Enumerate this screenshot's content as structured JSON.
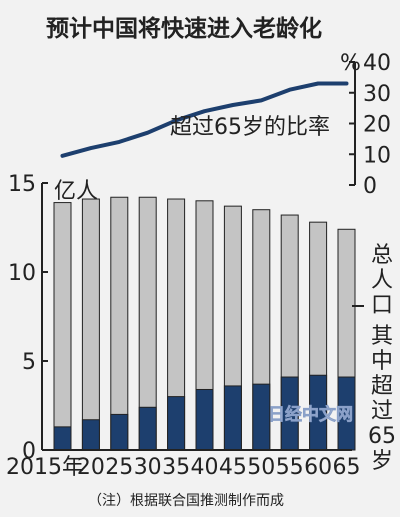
{
  "title": "预计中国将快速进入老龄化",
  "line_label": "超过65岁的比率",
  "right_unit": "%",
  "left_unit": "亿人",
  "legend_total": "总人口",
  "legend_over65": "其中超过65岁",
  "note": "（注）根据联合国推测制作而成",
  "watermark": "日经中文网",
  "colors": {
    "total": "#c4c4c4",
    "over65": "#1d3f6e",
    "line": "#1d3f6e"
  },
  "chart_data": [
    {
      "type": "bar",
      "categories": [
        "2015年",
        "20",
        "25",
        "30",
        "35",
        "40",
        "45",
        "50",
        "55",
        "60",
        "65"
      ],
      "series": [
        {
          "name": "总人口",
          "values": [
            13.9,
            14.1,
            14.2,
            14.2,
            14.1,
            14.0,
            13.7,
            13.5,
            13.2,
            12.8,
            12.4
          ]
        },
        {
          "name": "其中超过65岁",
          "values": [
            1.3,
            1.7,
            2.0,
            2.4,
            3.0,
            3.4,
            3.6,
            3.7,
            4.1,
            4.2,
            4.1
          ]
        }
      ],
      "ylabel": "亿人",
      "ylim": [
        0,
        15
      ],
      "yticks": [
        "0",
        "5",
        "10",
        "15"
      ]
    },
    {
      "type": "line",
      "categories": [
        "2015年",
        "20",
        "25",
        "30",
        "35",
        "40",
        "45",
        "50",
        "55",
        "60",
        "65"
      ],
      "series": [
        {
          "name": "超过65岁的比率",
          "values": [
            9.5,
            12,
            14,
            17,
            21,
            24,
            26,
            27.5,
            31,
            33,
            33
          ]
        }
      ],
      "ylabel": "%",
      "ylim": [
        0,
        40
      ],
      "yticks": [
        "0",
        "10",
        "20",
        "30",
        "40"
      ]
    }
  ]
}
